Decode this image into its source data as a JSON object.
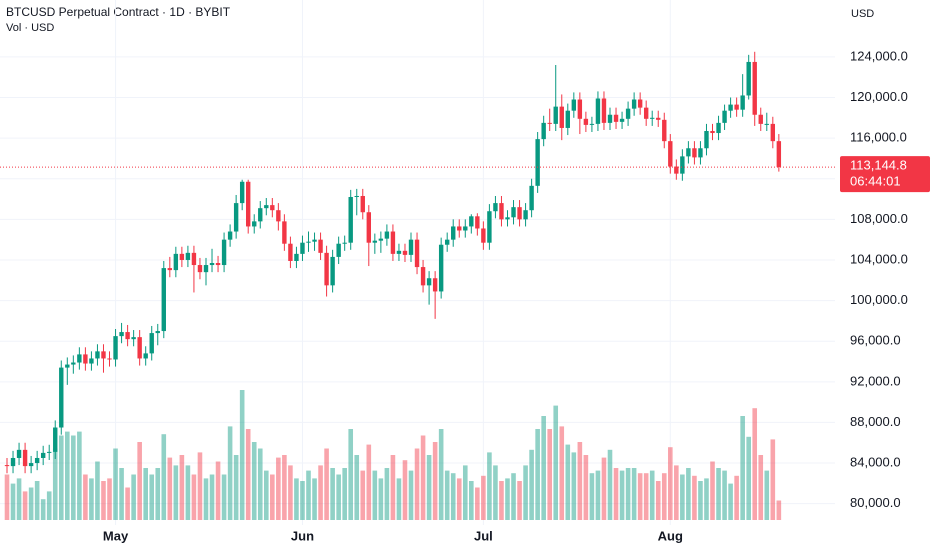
{
  "chart_data": {
    "type": "candlestick",
    "title": "BTCUSD Perpetual Contract · 1D · BYBIT",
    "subtitle": "Vol · USD",
    "y_axis_label": "USD",
    "up_color": "#089981",
    "down_color": "#f23645",
    "grid": true,
    "ylim": [
      77900,
      129600
    ],
    "yticks": [
      {
        "value": 80000,
        "label": "80,000.0"
      },
      {
        "value": 84000,
        "label": "84,000.0"
      },
      {
        "value": 88000,
        "label": "88,000.0"
      },
      {
        "value": 92000,
        "label": "92,000.0"
      },
      {
        "value": 96000,
        "label": "96,000.0"
      },
      {
        "value": 100000,
        "label": "100,000.0"
      },
      {
        "value": 104000,
        "label": "104,000.0"
      },
      {
        "value": 108000,
        "label": "108,000.0"
      },
      {
        "value": 112000,
        "label": "112,000.0"
      },
      {
        "value": 116000,
        "label": "116,000.0"
      },
      {
        "value": 120000,
        "label": "120,000.0"
      },
      {
        "value": 124000,
        "label": "124,000.0"
      }
    ],
    "categories": [
      null,
      null,
      null,
      null,
      null,
      null,
      null,
      null,
      null,
      null,
      null,
      null,
      null,
      null,
      null,
      null,
      null,
      null,
      "May",
      null,
      null,
      null,
      null,
      null,
      null,
      null,
      null,
      null,
      null,
      null,
      null,
      null,
      null,
      null,
      null,
      null,
      null,
      null,
      null,
      null,
      null,
      null,
      null,
      null,
      null,
      null,
      null,
      null,
      null,
      "Jun",
      null,
      null,
      null,
      null,
      null,
      null,
      null,
      null,
      null,
      null,
      null,
      null,
      null,
      null,
      null,
      null,
      null,
      null,
      null,
      null,
      null,
      null,
      null,
      null,
      null,
      null,
      null,
      null,
      null,
      "Jul",
      null,
      null,
      null,
      null,
      null,
      null,
      null,
      null,
      null,
      null,
      null,
      null,
      null,
      null,
      null,
      null,
      null,
      null,
      null,
      null,
      null,
      null,
      null,
      null,
      null,
      null,
      null,
      null,
      null,
      null,
      "Aug",
      null,
      null,
      null,
      null,
      null,
      null,
      null,
      null,
      null,
      null,
      null,
      null,
      null,
      null,
      null,
      null,
      null,
      null
    ],
    "open": [
      83800,
      83700,
      84500,
      85300,
      83700,
      84000,
      84500,
      85000,
      85100,
      87500,
      93400,
      93700,
      93900,
      94700,
      93800,
      94300,
      95000,
      94300,
      94200,
      96500,
      96900,
      96200,
      96400,
      94300,
      94800,
      96800,
      97000,
      103200,
      103000,
      104600,
      104000,
      104700,
      103500,
      102800,
      103500,
      103700,
      103500,
      106000,
      106800,
      109600,
      111700,
      107300,
      107800,
      109100,
      109400,
      108900,
      107800,
      105600,
      103900,
      104600,
      105700,
      105800,
      106000,
      104700,
      101500,
      104300,
      105600,
      105700,
      110200,
      110300,
      108700,
      105700,
      105900,
      106100,
      106800,
      104600,
      104900,
      104500,
      106000,
      103300,
      101500,
      102200,
      100900,
      105500,
      106000,
      107300,
      106900,
      107300,
      108300,
      107100,
      105700,
      108800,
      109600,
      108000,
      108200,
      109200,
      108000,
      108900,
      111300,
      115900,
      117500,
      117400,
      119100,
      117000,
      118700,
      119800,
      117900,
      117300,
      117400,
      119900,
      117500,
      118300,
      117600,
      117900,
      118900,
      119800,
      119000,
      117900,
      118000,
      117800,
      115700,
      113200,
      112500,
      114200,
      115000,
      114100,
      115000,
      116700,
      116500,
      117500,
      118700,
      119300,
      118800,
      120200,
      123500,
      118300,
      117400,
      117400,
      115700
    ],
    "high": [
      84500,
      85200,
      86000,
      86000,
      84700,
      85200,
      85700,
      85800,
      88200,
      94100,
      94400,
      94600,
      95400,
      95400,
      95000,
      95700,
      95700,
      95000,
      97200,
      97800,
      97600,
      97100,
      97100,
      95500,
      97500,
      97700,
      103900,
      104300,
      105300,
      105300,
      105400,
      105400,
      104200,
      104200,
      105100,
      104400,
      106700,
      107500,
      110400,
      111900,
      111900,
      108500,
      109800,
      110100,
      110100,
      109600,
      108500,
      106300,
      105300,
      106400,
      106800,
      106700,
      106700,
      105400,
      105000,
      106300,
      106400,
      110900,
      111000,
      111000,
      109400,
      106600,
      106800,
      107500,
      107500,
      105600,
      105600,
      106700,
      106700,
      104000,
      102900,
      102900,
      106200,
      106700,
      108000,
      108000,
      108000,
      108500,
      108600,
      107800,
      109500,
      110300,
      110300,
      108900,
      109900,
      109900,
      109600,
      112000,
      116600,
      118200,
      118900,
      123200,
      120300,
      119400,
      120500,
      120500,
      118600,
      118100,
      120600,
      120600,
      119000,
      119000,
      118600,
      119600,
      120500,
      120500,
      119700,
      118700,
      118700,
      118500,
      116400,
      113900,
      114900,
      115700,
      115700,
      115700,
      117400,
      117400,
      118200,
      119300,
      120000,
      120000,
      122300,
      124200,
      124500,
      119000,
      118500,
      118100,
      116400
    ],
    "low": [
      83000,
      83000,
      83800,
      83000,
      83000,
      83300,
      83800,
      84300,
      84400,
      86800,
      91700,
      92800,
      93200,
      93100,
      93100,
      93600,
      92900,
      93500,
      93500,
      95800,
      95500,
      95500,
      93600,
      93600,
      94100,
      95600,
      96300,
      102300,
      102300,
      103300,
      103300,
      100800,
      102100,
      101500,
      102800,
      102800,
      102800,
      105300,
      106100,
      108900,
      106600,
      106600,
      107100,
      108400,
      108200,
      106900,
      104900,
      103200,
      103200,
      103900,
      104800,
      104900,
      104000,
      100400,
      100800,
      103600,
      104900,
      105000,
      108400,
      108000,
      103400,
      104600,
      104700,
      105400,
      103900,
      103900,
      103800,
      103800,
      102600,
      100800,
      99600,
      98200,
      100200,
      104800,
      105300,
      106200,
      106200,
      106600,
      106400,
      105000,
      105000,
      108100,
      107300,
      107300,
      107500,
      107300,
      107300,
      108200,
      110600,
      115200,
      116700,
      116700,
      115800,
      116300,
      118000,
      116400,
      116600,
      116600,
      116700,
      116800,
      116800,
      116900,
      116900,
      117200,
      118200,
      118300,
      117200,
      117200,
      117100,
      115000,
      112500,
      111900,
      111800,
      113500,
      113400,
      113400,
      114300,
      115800,
      115800,
      116800,
      118000,
      118100,
      118100,
      119800,
      117200,
      116700,
      116700,
      115000,
      112700
    ],
    "close": [
      83700,
      84500,
      85300,
      83700,
      84000,
      84500,
      85000,
      85100,
      87500,
      93400,
      93700,
      93900,
      94700,
      93800,
      94300,
      95000,
      94300,
      94200,
      96500,
      96900,
      96200,
      96400,
      94300,
      94800,
      96800,
      97000,
      103200,
      103000,
      104600,
      104000,
      104700,
      103500,
      102800,
      103500,
      103700,
      103500,
      106000,
      106800,
      109600,
      111700,
      107300,
      107800,
      109100,
      109400,
      108900,
      107800,
      105600,
      103900,
      104600,
      105700,
      105800,
      106000,
      104700,
      101500,
      104300,
      105600,
      105700,
      110200,
      110300,
      108700,
      105700,
      105900,
      106100,
      106800,
      104600,
      104900,
      104500,
      106000,
      103300,
      101500,
      102200,
      100900,
      105500,
      106000,
      107300,
      106900,
      107300,
      108300,
      107100,
      105700,
      108800,
      109600,
      108000,
      108200,
      109200,
      108000,
      108900,
      111300,
      115900,
      117500,
      117400,
      119100,
      117000,
      118700,
      119800,
      117900,
      117300,
      117400,
      119900,
      117500,
      118300,
      117600,
      117900,
      118900,
      119800,
      119000,
      117900,
      118000,
      117800,
      115700,
      113200,
      112500,
      114200,
      115000,
      114100,
      115000,
      116700,
      116500,
      117500,
      118700,
      119300,
      118800,
      120200,
      123500,
      118300,
      117400,
      117400,
      115700,
      113144.8
    ],
    "volume": [
      3.5,
      2.8,
      3.2,
      2.2,
      2.5,
      3.0,
      1.6,
      2.2,
      5.5,
      6.5,
      6.8,
      6.5,
      6.8,
      3.5,
      3.2,
      4.5,
      3.0,
      3.2,
      5.5,
      4.0,
      2.5,
      3.5,
      6.0,
      4.0,
      3.5,
      4.0,
      6.6,
      4.8,
      4.2,
      5.0,
      4.2,
      3.5,
      5.2,
      3.2,
      3.5,
      4.5,
      3.5,
      7.2,
      5.0,
      10.0,
      7.0,
      6.0,
      5.5,
      3.8,
      3.5,
      4.8,
      5.0,
      4.2,
      3.2,
      3.0,
      3.8,
      3.2,
      4.2,
      5.5,
      4.0,
      3.5,
      4.0,
      7.0,
      5.0,
      3.8,
      5.8,
      3.8,
      3.2,
      4.0,
      5.0,
      3.2,
      4.6,
      3.8,
      5.5,
      6.5,
      5.0,
      6.0,
      7.0,
      3.8,
      3.6,
      3.2,
      4.2,
      3.0,
      2.5,
      3.4,
      5.2,
      4.2,
      3.0,
      3.2,
      3.6,
      3.0,
      4.2,
      5.4,
      7.0,
      8.0,
      7.0,
      8.8,
      7.2,
      5.8,
      5.2,
      6.0,
      5.0,
      3.6,
      3.8,
      4.8,
      5.4,
      4.0,
      3.8,
      4.0,
      4.0,
      3.6,
      3.6,
      3.8,
      3.0,
      3.6,
      5.6,
      4.2,
      3.5,
      4.0,
      3.4,
      3.0,
      3.2,
      4.5,
      4.0,
      3.8,
      2.8,
      3.4,
      8.0,
      6.4,
      8.6,
      5.0,
      3.8,
      6.2,
      1.5
    ],
    "last_price_label": "113,144.8",
    "countdown": "06:44:01"
  }
}
